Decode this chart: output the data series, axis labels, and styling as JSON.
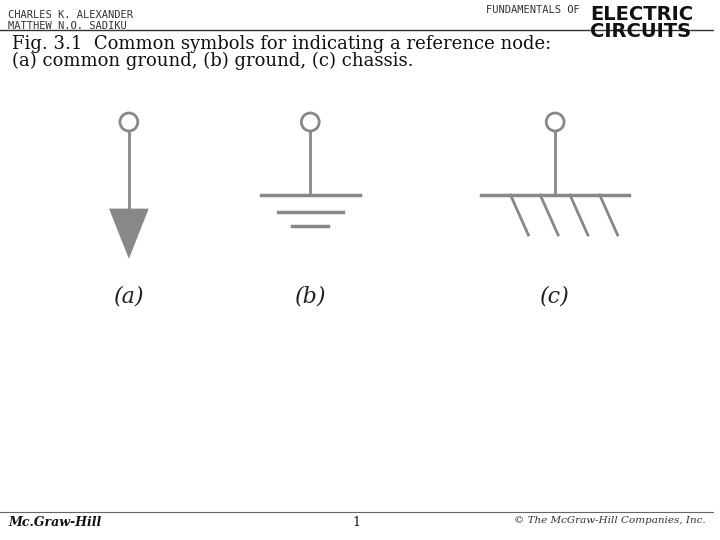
{
  "bg_color": "#ffffff",
  "line_color": "#808080",
  "arrow_color": "#808080",
  "text_color": "#000000",
  "header_left_line1": "CHARLES K. ALEXANDER",
  "header_left_line2": "MATTHEW N.O. SADIKU",
  "header_right_line1": "FUNDAMENTALS OF",
  "header_right_line2": "ELECTRIC",
  "header_right_line3": "CIRCUITS",
  "fig_caption_line1": "Fig. 3.1  Common symbols for indicating a reference node:",
  "fig_caption_line2": "(a) common ground, (b) ground, (c) chassis.",
  "label_a": "(a)",
  "label_b": "(b)",
  "label_c": "(c)",
  "footer_left": "Mc.Graw-Hill",
  "footer_center": "1",
  "footer_right": "© The McGraw-Hill Companies, Inc.",
  "symbol_color": "#888888",
  "lw": 2.0
}
